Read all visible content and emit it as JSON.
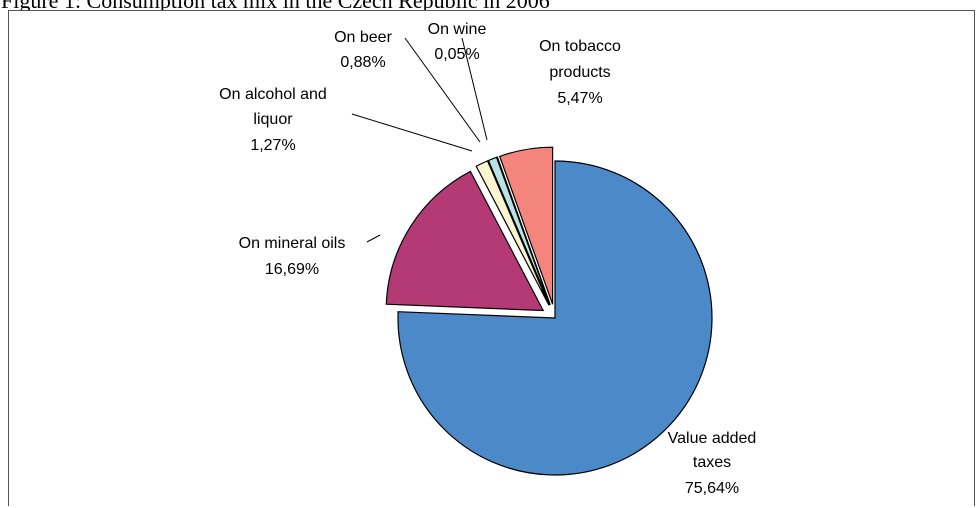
{
  "figure": {
    "title": "Figure 1: Consumption tax mix in the Czech Republic in 2006"
  },
  "chart_data": {
    "type": "pie",
    "title": "Figure 1: Consumption tax mix in the Czech Republic in 2006",
    "slices": [
      {
        "label": "Value added taxes",
        "value": 75.64,
        "value_text": "75,64%",
        "color": "#4b89c8",
        "exploded": false
      },
      {
        "label": "On mineral oils",
        "value": 16.69,
        "value_text": "16,69%",
        "color": "#b33a74",
        "exploded": true
      },
      {
        "label": "On alcohol and liquor",
        "value": 1.27,
        "value_text": "1,27%",
        "color": "#fcf5d2",
        "exploded": true
      },
      {
        "label": "On beer",
        "value": 0.88,
        "value_text": "0,88%",
        "color": "#b9e2e4",
        "exploded": true
      },
      {
        "label": "On wine",
        "value": 0.05,
        "value_text": "0,05%",
        "color": "#ffffff",
        "exploded": true
      },
      {
        "label": "On tobacco products",
        "value": 5.47,
        "value_text": "5,47%",
        "color": "#f3857c",
        "exploded": true
      }
    ]
  }
}
